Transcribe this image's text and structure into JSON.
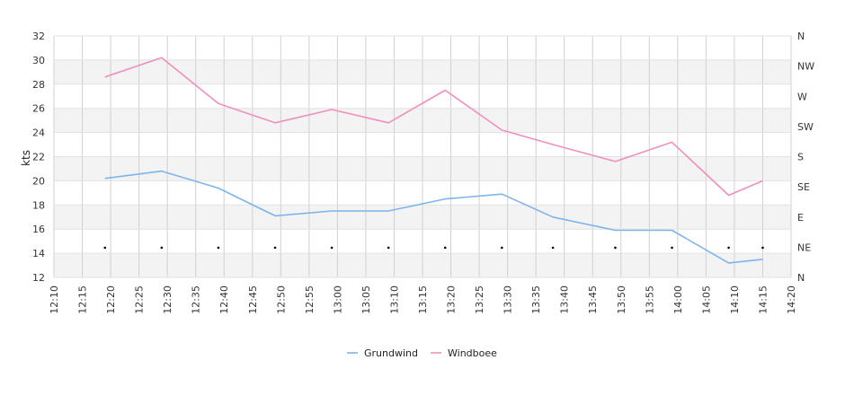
{
  "chart_data": {
    "type": "line",
    "ylabel": "kts",
    "ylim": [
      12,
      32
    ],
    "y_ticks": [
      12,
      14,
      16,
      18,
      20,
      22,
      24,
      26,
      28,
      30,
      32
    ],
    "x_ticks": [
      "12:10",
      "12:15",
      "12:20",
      "12:25",
      "12:30",
      "12:35",
      "12:40",
      "12:45",
      "12:50",
      "12:55",
      "13:00",
      "13:05",
      "13:10",
      "13:15",
      "13:20",
      "13:25",
      "13:30",
      "13:35",
      "13:40",
      "13:45",
      "13:50",
      "13:55",
      "14:00",
      "14:05",
      "14:10",
      "14:15",
      "14:20"
    ],
    "direction_ticks": [
      "N",
      "NE",
      "E",
      "SE",
      "S",
      "SW",
      "W",
      "NW",
      "N"
    ],
    "legend_position": "bottom",
    "grid": true,
    "series": [
      {
        "name": "Grundwind",
        "color": "#7cb5ec",
        "x": [
          "12:19",
          "12:29",
          "12:39",
          "12:49",
          "12:59",
          "13:09",
          "13:19",
          "13:29",
          "13:38",
          "13:49",
          "13:59",
          "14:09",
          "14:15"
        ],
        "values": [
          20.2,
          20.8,
          19.4,
          17.1,
          17.5,
          17.5,
          18.5,
          18.9,
          17.0,
          15.9,
          15.9,
          13.2,
          13.5
        ]
      },
      {
        "name": "Windboee",
        "color": "#f08fbf",
        "x": [
          "12:19",
          "12:29",
          "12:39",
          "12:49",
          "12:59",
          "13:09",
          "13:19",
          "13:29",
          "13:38",
          "13:49",
          "13:59",
          "14:09",
          "14:15"
        ],
        "values": [
          28.6,
          30.2,
          26.4,
          24.8,
          25.9,
          24.8,
          27.5,
          24.2,
          23.0,
          21.6,
          23.2,
          18.8,
          20.0
        ]
      }
    ],
    "direction_markers": {
      "x": [
        "12:19",
        "12:29",
        "12:39",
        "12:49",
        "12:59",
        "13:09",
        "13:19",
        "13:29",
        "13:38",
        "13:49",
        "13:59",
        "14:09",
        "14:15"
      ],
      "direction": [
        "NE",
        "NE",
        "NE",
        "NE",
        "NE",
        "NE",
        "NE",
        "NE",
        "NE",
        "NE",
        "NE",
        "NE",
        "NE"
      ]
    }
  }
}
